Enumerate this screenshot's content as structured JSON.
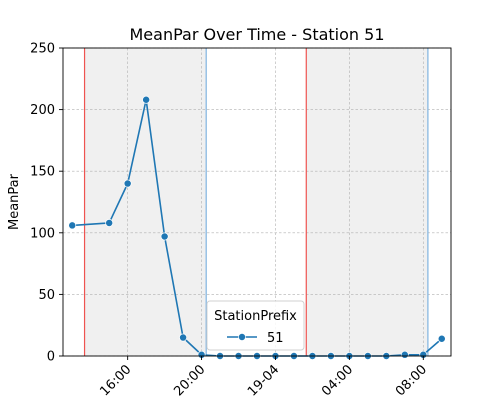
{
  "chart_data": {
    "type": "line",
    "title": "MeanPar Over Time - Station 51",
    "xlabel": "",
    "ylabel": "MeanPar",
    "ylim": [
      0,
      250
    ],
    "xlim": [
      "2024-04-18 12:30",
      "2024-04-19 09:30"
    ],
    "yticks": [
      0,
      50,
      100,
      150,
      200,
      250
    ],
    "xticks": [
      {
        "value": "2024-04-18 16:00",
        "label": "16:00"
      },
      {
        "value": "2024-04-18 20:00",
        "label": "20:00"
      },
      {
        "value": "2024-04-19 00:00",
        "label": "19-04"
      },
      {
        "value": "2024-04-19 04:00",
        "label": "04:00"
      },
      {
        "value": "2024-04-19 08:00",
        "label": "08:00"
      }
    ],
    "grid": true,
    "legend": {
      "title": "StationPrefix",
      "position": "bottom-center"
    },
    "series": [
      {
        "name": "51",
        "color": "#1f77b4",
        "points": [
          {
            "x": "2024-04-18 13:00",
            "y": 106
          },
          {
            "x": "2024-04-18 15:00",
            "y": 108
          },
          {
            "x": "2024-04-18 16:00",
            "y": 140
          },
          {
            "x": "2024-04-18 17:00",
            "y": 208
          },
          {
            "x": "2024-04-18 18:00",
            "y": 97
          },
          {
            "x": "2024-04-18 19:00",
            "y": 15
          },
          {
            "x": "2024-04-18 20:00",
            "y": 1
          },
          {
            "x": "2024-04-18 21:00",
            "y": 0
          },
          {
            "x": "2024-04-18 22:00",
            "y": 0
          },
          {
            "x": "2024-04-18 23:00",
            "y": 0
          },
          {
            "x": "2024-04-19 00:00",
            "y": 0
          },
          {
            "x": "2024-04-19 01:00",
            "y": 0
          },
          {
            "x": "2024-04-19 02:00",
            "y": 0
          },
          {
            "x": "2024-04-19 03:00",
            "y": 0
          },
          {
            "x": "2024-04-19 04:00",
            "y": 0
          },
          {
            "x": "2024-04-19 05:00",
            "y": 0
          },
          {
            "x": "2024-04-19 06:00",
            "y": 0
          },
          {
            "x": "2024-04-19 07:00",
            "y": 1
          },
          {
            "x": "2024-04-19 08:00",
            "y": 1
          },
          {
            "x": "2024-04-19 09:00",
            "y": 14
          }
        ]
      }
    ],
    "shaded_regions": [
      {
        "start": "2024-04-18 13:40",
        "end": "2024-04-18 20:15",
        "color": "#f0f0f0"
      },
      {
        "start": "2024-04-19 01:40",
        "end": "2024-04-19 08:15",
        "color": "#f0f0f0"
      }
    ],
    "vertical_lines": [
      {
        "x": "2024-04-18 13:40",
        "color": "#ef5350"
      },
      {
        "x": "2024-04-18 20:15",
        "color": "#7fb3e0"
      },
      {
        "x": "2024-04-19 01:40",
        "color": "#ef5350"
      },
      {
        "x": "2024-04-19 08:15",
        "color": "#7fb3e0"
      }
    ]
  }
}
